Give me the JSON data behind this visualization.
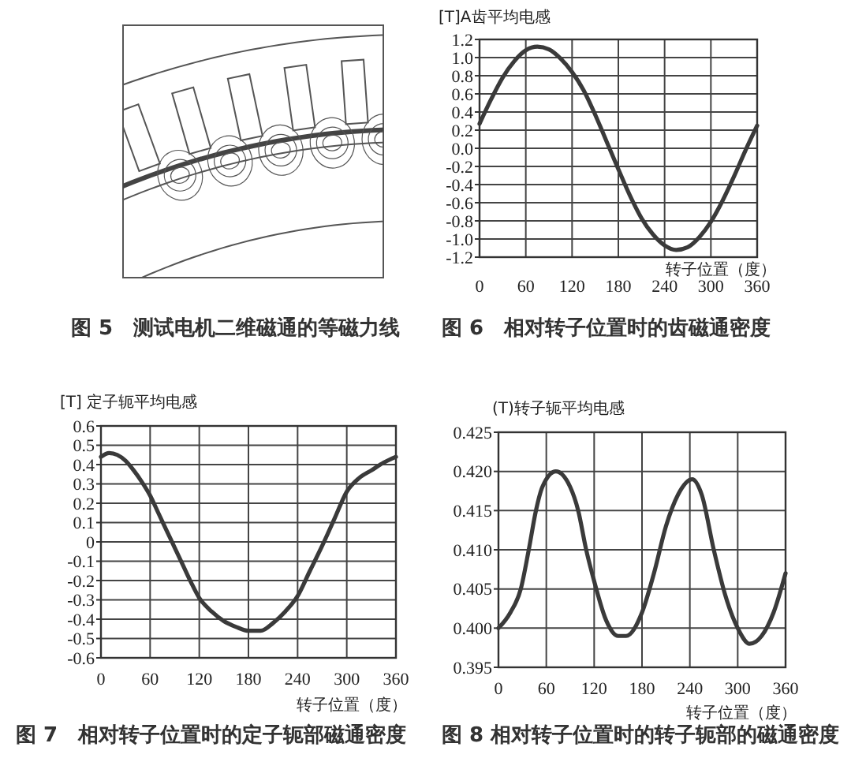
{
  "chart_data": [
    {
      "type": "other",
      "annotations": [
        "图 5　测试电机二维磁通的等磁力线"
      ]
    },
    {
      "type": "line",
      "ylabel": "[T]A齿平均电感",
      "xlabel": "转子位置（度）",
      "annotations": [
        "图 6　相对转子位置时的齿磁通密度"
      ],
      "x": [
        0,
        15,
        30,
        45,
        60,
        75,
        90,
        105,
        120,
        135,
        150,
        165,
        180,
        195,
        210,
        225,
        240,
        255,
        270,
        285,
        300,
        315,
        330,
        345,
        360
      ],
      "series": [
        {
          "color": "#3a3a3a",
          "values": [
            0.27,
            0.54,
            0.78,
            0.96,
            1.08,
            1.12,
            1.09,
            0.99,
            0.84,
            0.64,
            0.37,
            0.07,
            -0.23,
            -0.52,
            -0.77,
            -0.95,
            -1.07,
            -1.12,
            -1.09,
            -0.98,
            -0.81,
            -0.58,
            -0.31,
            -0.02,
            0.25
          ]
        }
      ],
      "xlim": [
        0,
        360
      ],
      "xticks": [
        0,
        60,
        120,
        180,
        240,
        300,
        360
      ],
      "ylim": [
        -1.2,
        1.2
      ],
      "yticks": [
        -1.2,
        {
          "value": -1,
          "label": "-1.0"
        },
        -0.8,
        -0.6,
        -0.4,
        -0.2,
        {
          "value": 0,
          "label": "0.0"
        },
        0.2,
        0.4,
        0.6,
        0.8,
        {
          "value": 1,
          "label": "1.0"
        },
        1.2
      ],
      "grid": true
    },
    {
      "type": "line",
      "ylabel": "[T] 定子轭平均电感",
      "xlabel": "转子位置（度）",
      "annotations": [
        "图 7　相对转子位置时的定子轭部磁通密度"
      ],
      "x": [
        0,
        10,
        20,
        30,
        40,
        50,
        60,
        70,
        80,
        90,
        100,
        110,
        120,
        135,
        150,
        165,
        180,
        195,
        210,
        225,
        240,
        255,
        270,
        285,
        300,
        315,
        330,
        345,
        360
      ],
      "series": [
        {
          "color": "#3a3a3a",
          "values": [
            0.44,
            0.46,
            0.45,
            0.42,
            0.37,
            0.31,
            0.24,
            0.15,
            0.06,
            -0.03,
            -0.12,
            -0.21,
            -0.29,
            -0.36,
            -0.41,
            -0.44,
            -0.46,
            -0.46,
            -0.42,
            -0.36,
            -0.28,
            -0.15,
            -0.02,
            0.12,
            0.26,
            0.33,
            0.37,
            0.41,
            0.44
          ]
        }
      ],
      "xlim": [
        0,
        360
      ],
      "xticks": [
        0,
        60,
        120,
        180,
        240,
        300,
        360
      ],
      "ylim": [
        -0.6,
        0.6
      ],
      "yticks": [
        -0.6,
        -0.5,
        -0.4,
        -0.3,
        -0.2,
        -0.1,
        0,
        0.1,
        0.2,
        0.3,
        0.4,
        0.5,
        0.6
      ],
      "grid": true
    },
    {
      "type": "line",
      "ylabel": "(T)转子轭平均电感",
      "xlabel": "转子位置（度）",
      "annotations": [
        "图 8 相对转子位置时的转子轭部的磁通密度"
      ],
      "x": [
        0,
        15,
        28,
        38,
        47,
        55,
        72,
        90,
        100,
        110,
        120,
        135,
        150,
        160,
        180,
        195,
        210,
        225,
        243,
        255,
        270,
        285,
        300,
        315,
        330,
        345,
        360
      ],
      "series": [
        {
          "color": "#3a3a3a",
          "values": [
            0.4,
            0.402,
            0.405,
            0.41,
            0.415,
            0.418,
            0.42,
            0.418,
            0.415,
            0.41,
            0.406,
            0.401,
            0.399,
            0.399,
            0.402,
            0.407,
            0.413,
            0.417,
            0.419,
            0.417,
            0.41,
            0.404,
            0.4,
            0.398,
            0.399,
            0.402,
            0.407
          ]
        }
      ],
      "xlim": [
        0,
        360
      ],
      "xticks": [
        0,
        60,
        120,
        180,
        240,
        300,
        360
      ],
      "ylim": [
        0.395,
        0.425
      ],
      "yticks": [
        0.395,
        {
          "value": 0.4,
          "label": "0.400"
        },
        0.405,
        {
          "value": 0.41,
          "label": "0.410"
        },
        0.415,
        {
          "value": 0.42,
          "label": "0.420"
        },
        0.425
      ],
      "grid": true
    }
  ]
}
